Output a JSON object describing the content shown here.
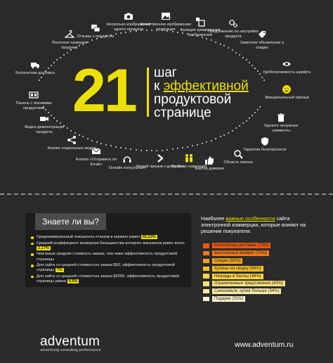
{
  "headline": {
    "number": "21",
    "line1": "шаг",
    "line2_prefix": "к ",
    "line2_highlight": "эффективной",
    "line3": "продуктовой",
    "line4": "странице"
  },
  "steps": [
    {
      "label": "Понятное название продукта",
      "icon": "hanger-icon"
    },
    {
      "label": "Отзывы о продуктах",
      "icon": "chat-bubbles-icon"
    },
    {
      "label": "Несколько изображений одного продукта",
      "icon": "camera-icon"
    },
    {
      "label": "Качественное изображение продукции",
      "icon": "image-icon"
    },
    {
      "label": "Функция зумирования изображения",
      "icon": "zoom-icon"
    },
    {
      "label": "Предложение по настройке продукта",
      "icon": "gears-icon"
    },
    {
      "label": "Заметное объявление о скидке",
      "icon": "price-tag-icon"
    },
    {
      "label": "Удобочитаемость шрифта",
      "icon": "eye-icon"
    },
    {
      "label": "Эмоциональный призыв",
      "icon": "smiley-icon"
    },
    {
      "label": "Удалите ненужные элементы",
      "icon": "trash-icon"
    },
    {
      "label": "Гарантия безопасности",
      "icon": "shield-icon"
    },
    {
      "label": "Область поиска",
      "icon": "search-icon"
    },
    {
      "label": "Удобная навигация",
      "icon": "people-icon"
    },
    {
      "label": "Фактор доверия",
      "icon": "thumbs-up-icon"
    },
    {
      "label": "Четкий призыв к действию",
      "icon": "arrow-right-icon"
    },
    {
      "label": "Онлайн консультант",
      "icon": "headset-icon"
    },
    {
      "label": "Кнопка «Отправить по Email»",
      "icon": "envelope-icon"
    },
    {
      "label": "Кнопки социальных медиа",
      "icon": "social-icon"
    },
    {
      "label": "Видео-демонстрация продукта",
      "icon": "video-camera-icon"
    },
    {
      "label": "Панель с похожими продуктами",
      "icon": "panel-icon"
    },
    {
      "label": "Бесплатная доставка",
      "icon": "truck-icon"
    }
  ],
  "know": {
    "title": "Знаете ли вы?",
    "facts": [
      {
        "text": "Средневзвешенный показатель отказов в корзине равен ",
        "badge": "65,23%"
      },
      {
        "text": "Средний коэффициент конверсии большинства интернет-магазинов равен всего ",
        "badge": "2,17%"
      },
      {
        "text": "Чем выше средняя стоимость заказа, тем ниже эффективность продуктовой страницы",
        "badge": ""
      },
      {
        "text": "Для сайта со средней стоимостью заказа $50, эффективность продуктовой страницы ",
        "badge": "7%"
      },
      {
        "text": "Для сайта со средней стоимостью заказа $2000, эффективность продуктовой страницы равна ",
        "badge": "4,5%"
      }
    ]
  },
  "features": {
    "title_prefix": "Наиболее ",
    "title_highlight": "важные особенности",
    "title_suffix": " сайта электронной коммерции, которые влияют на решение покупателя:",
    "items": [
      {
        "label": "Бесплатная доставка (73%)",
        "value": 73,
        "color": "#e85a16"
      },
      {
        "label": "Бесплатный возврат (70%)",
        "value": 70,
        "color": "#ef7a1b"
      },
      {
        "label": "Скидки (60%)",
        "value": 60,
        "color": "#f2a11e"
      },
      {
        "label": "Купоны на скидку (56%)",
        "value": 56,
        "color": "#f6c02b"
      },
      {
        "label": "Награды и баллы (46%)",
        "value": 46,
        "color": "#f8d646"
      },
      {
        "label": "Ограниченные предложения (43%)",
        "value": 43,
        "color": "#fae27a"
      },
      {
        "label": "Сэкономьте, купив больше (34%)",
        "value": 34,
        "color": "#fbeaa8"
      },
      {
        "label": "Подарки (31%)",
        "value": 31,
        "color": "#fdf3cf"
      }
    ]
  },
  "footer": {
    "logo": "adventum",
    "tagline": "advertising consulting performance",
    "site": "www.adventum.ru"
  },
  "colors": {
    "accent": "#ece000",
    "background": "#2b2b2b"
  }
}
